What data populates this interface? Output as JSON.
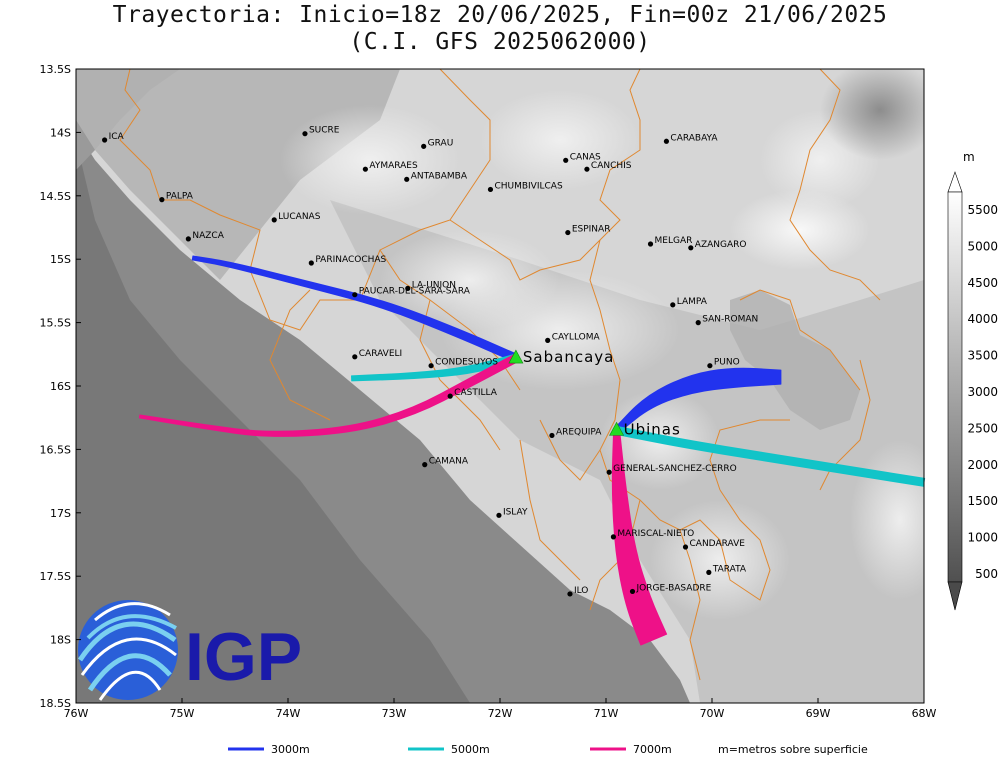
{
  "title": {
    "line1": "Trayectoria: Inicio=18z 20/06/2025, Fin=00z 21/06/2025",
    "line2": "(C.I. GFS 2025062000)"
  },
  "axes": {
    "x_ticks": [
      {
        "lon": -76,
        "label": "76W"
      },
      {
        "lon": -75,
        "label": "75W"
      },
      {
        "lon": -74,
        "label": "74W"
      },
      {
        "lon": -73,
        "label": "73W"
      },
      {
        "lon": -72,
        "label": "72W"
      },
      {
        "lon": -71,
        "label": "71W"
      },
      {
        "lon": -70,
        "label": "70W"
      },
      {
        "lon": -69,
        "label": "69W"
      },
      {
        "lon": -68,
        "label": "68W"
      }
    ],
    "y_ticks": [
      {
        "lat": -13.5,
        "label": "13.5S"
      },
      {
        "lat": -14,
        "label": "14S"
      },
      {
        "lat": -14.5,
        "label": "14.5S"
      },
      {
        "lat": -15,
        "label": "15S"
      },
      {
        "lat": -15.5,
        "label": "15.5S"
      },
      {
        "lat": -16,
        "label": "16S"
      },
      {
        "lat": -16.5,
        "label": "16.5S"
      },
      {
        "lat": -17,
        "label": "17S"
      },
      {
        "lat": -17.5,
        "label": "17.5S"
      },
      {
        "lat": -18,
        "label": "18S"
      },
      {
        "lat": -18.5,
        "label": "18.5S"
      }
    ],
    "lon_range": [
      -76,
      -68
    ],
    "lat_range": [
      -18.5,
      -13.5
    ]
  },
  "places": [
    {
      "name": "ICA",
      "lon": -75.73,
      "lat": -14.06
    },
    {
      "name": "SUCRE",
      "lon": -73.84,
      "lat": -14.01
    },
    {
      "name": "GRAU",
      "lon": -72.72,
      "lat": -14.11
    },
    {
      "name": "CARABAYA",
      "lon": -70.43,
      "lat": -14.07
    },
    {
      "name": "CANAS",
      "lon": -71.38,
      "lat": -14.22
    },
    {
      "name": "CANCHIS",
      "lon": -71.18,
      "lat": -14.29
    },
    {
      "name": "AYMARAES",
      "lon": -73.27,
      "lat": -14.29
    },
    {
      "name": "ANTABAMBA",
      "lon": -72.88,
      "lat": -14.37
    },
    {
      "name": "CHUMBIVILCAS",
      "lon": -72.09,
      "lat": -14.45
    },
    {
      "name": "PALPA",
      "lon": -75.19,
      "lat": -14.53
    },
    {
      "name": "LUCANAS",
      "lon": -74.13,
      "lat": -14.69
    },
    {
      "name": "ESPINAR",
      "lon": -71.36,
      "lat": -14.79
    },
    {
      "name": "NAZCA",
      "lon": -74.94,
      "lat": -14.84
    },
    {
      "name": "MELGAR",
      "lon": -70.58,
      "lat": -14.88
    },
    {
      "name": "AZANGARO",
      "lon": -70.2,
      "lat": -14.91
    },
    {
      "name": "PARINACOCHAS",
      "lon": -73.78,
      "lat": -15.03
    },
    {
      "name": "LA-UNION",
      "lon": -72.87,
      "lat": -15.23
    },
    {
      "name": "PAUCAR-DEL-SARA-SARA",
      "lon": -73.37,
      "lat": -15.28
    },
    {
      "name": "LAMPA",
      "lon": -70.37,
      "lat": -15.36
    },
    {
      "name": "SAN-ROMAN",
      "lon": -70.13,
      "lat": -15.5
    },
    {
      "name": "CAYLLOMA",
      "lon": -71.55,
      "lat": -15.64
    },
    {
      "name": "CARAVELI",
      "lon": -73.37,
      "lat": -15.77
    },
    {
      "name": "CONDESUYOS",
      "lon": -72.65,
      "lat": -15.84
    },
    {
      "name": "PUNO",
      "lon": -70.02,
      "lat": -15.84
    },
    {
      "name": "CASTILLA",
      "lon": -72.47,
      "lat": -16.08
    },
    {
      "name": "AREQUIPA",
      "lon": -71.51,
      "lat": -16.39
    },
    {
      "name": "GENERAL-SANCHEZ-CERRO",
      "lon": -70.97,
      "lat": -16.68
    },
    {
      "name": "CAMANA",
      "lon": -72.71,
      "lat": -16.62
    },
    {
      "name": "ISLAY",
      "lon": -72.01,
      "lat": -17.02
    },
    {
      "name": "MARISCAL-NIETO",
      "lon": -70.93,
      "lat": -17.19
    },
    {
      "name": "CANDARAVE",
      "lon": -70.25,
      "lat": -17.27
    },
    {
      "name": "TARATA",
      "lon": -70.03,
      "lat": -17.47
    },
    {
      "name": "JORGE-BASADRE",
      "lon": -70.75,
      "lat": -17.62
    },
    {
      "name": "ILO",
      "lon": -71.34,
      "lat": -17.64
    }
  ],
  "volcanoes": [
    {
      "name": "Sabancaya",
      "lon": -71.85,
      "lat": -15.78
    },
    {
      "name": "Ubinas",
      "lon": -70.9,
      "lat": -16.35
    }
  ],
  "trajectories": [
    {
      "volcano": "Sabancaya",
      "level": "3000m",
      "color": "#2233ee",
      "path": [
        [
          -71.85,
          -15.78
        ],
        [
          -72.4,
          -15.58
        ],
        [
          -73.1,
          -15.35
        ],
        [
          -73.9,
          -15.18
        ],
        [
          -74.55,
          -15.04
        ],
        [
          -74.9,
          -14.99
        ]
      ],
      "width": [
        8,
        8,
        7,
        6,
        5,
        4
      ]
    },
    {
      "volcano": "Sabancaya",
      "level": "5000m",
      "color": "#11c4c8",
      "path": [
        [
          -71.85,
          -15.78
        ],
        [
          -72.3,
          -15.88
        ],
        [
          -72.8,
          -15.92
        ],
        [
          -73.4,
          -15.94
        ]
      ],
      "width": [
        8,
        7,
        6,
        5
      ]
    },
    {
      "volcano": "Sabancaya",
      "level": "7000m",
      "color": "#ee1188",
      "path": [
        [
          -71.85,
          -15.78
        ],
        [
          -72.3,
          -15.98
        ],
        [
          -72.8,
          -16.2
        ],
        [
          -73.4,
          -16.35
        ],
        [
          -74.2,
          -16.39
        ],
        [
          -74.8,
          -16.32
        ],
        [
          -75.4,
          -16.24
        ]
      ],
      "width": [
        8,
        8,
        7,
        6,
        5,
        4,
        3
      ]
    },
    {
      "volcano": "Ubinas",
      "level": "3000m",
      "color": "#2233ee",
      "path": [
        [
          -70.9,
          -16.35
        ],
        [
          -70.6,
          -16.12
        ],
        [
          -70.2,
          -15.98
        ],
        [
          -69.8,
          -15.93
        ],
        [
          -69.35,
          -15.93
        ]
      ],
      "width": [
        6,
        12,
        18,
        20,
        14
      ]
    },
    {
      "volcano": "Ubinas",
      "level": "5000m",
      "color": "#11c4c8",
      "path": [
        [
          -70.9,
          -16.35
        ],
        [
          -70.3,
          -16.45
        ],
        [
          -69.5,
          -16.56
        ],
        [
          -68.6,
          -16.68
        ],
        [
          -68.0,
          -16.76
        ]
      ],
      "width": [
        8,
        8,
        8,
        8,
        8
      ]
    },
    {
      "volcano": "Ubinas",
      "level": "7000m",
      "color": "#ee1188",
      "path": [
        [
          -70.9,
          -16.35
        ],
        [
          -70.88,
          -16.8
        ],
        [
          -70.82,
          -17.3
        ],
        [
          -70.7,
          -17.7
        ],
        [
          -70.55,
          -18.0
        ]
      ],
      "width": [
        6,
        14,
        20,
        26,
        28
      ]
    }
  ],
  "colorbar": {
    "unit": "m",
    "labels": [
      "500",
      "1000",
      "1500",
      "2000",
      "2500",
      "3000",
      "3500",
      "4000",
      "4500",
      "5000",
      "5500"
    ]
  },
  "legend": {
    "items": [
      {
        "label": "3000m",
        "color": "#2233ee"
      },
      {
        "label": "5000m",
        "color": "#11c4c8"
      },
      {
        "label": "7000m",
        "color": "#ee1188"
      }
    ],
    "note": "m=metros sobre superficie"
  },
  "logo": {
    "text": "IGP",
    "color": "#1a1aaa"
  }
}
